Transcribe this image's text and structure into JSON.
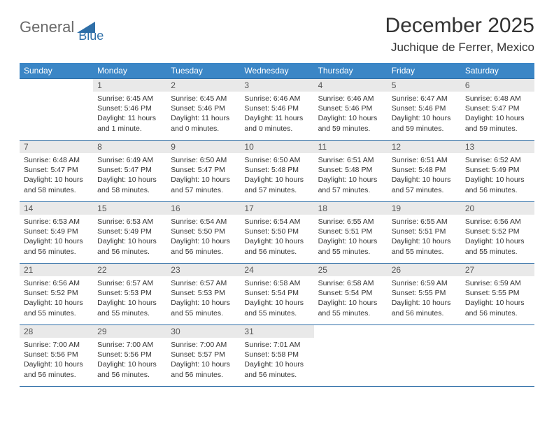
{
  "logo": {
    "text1": "General",
    "text2": "Blue"
  },
  "title": "December 2025",
  "location": "Juchique de Ferrer, Mexico",
  "weekday_header_bg": "#3b86c6",
  "weekday_header_fg": "#ffffff",
  "divider_color": "#2f6fa8",
  "daynum_bg": "#e9e9e9",
  "weekdays": [
    "Sunday",
    "Monday",
    "Tuesday",
    "Wednesday",
    "Thursday",
    "Friday",
    "Saturday"
  ],
  "weeks": [
    [
      {
        "empty": true
      },
      {
        "num": "1",
        "sunrise": "Sunrise: 6:45 AM",
        "sunset": "Sunset: 5:46 PM",
        "daylight": "Daylight: 11 hours and 1 minute."
      },
      {
        "num": "2",
        "sunrise": "Sunrise: 6:45 AM",
        "sunset": "Sunset: 5:46 PM",
        "daylight": "Daylight: 11 hours and 0 minutes."
      },
      {
        "num": "3",
        "sunrise": "Sunrise: 6:46 AM",
        "sunset": "Sunset: 5:46 PM",
        "daylight": "Daylight: 11 hours and 0 minutes."
      },
      {
        "num": "4",
        "sunrise": "Sunrise: 6:46 AM",
        "sunset": "Sunset: 5:46 PM",
        "daylight": "Daylight: 10 hours and 59 minutes."
      },
      {
        "num": "5",
        "sunrise": "Sunrise: 6:47 AM",
        "sunset": "Sunset: 5:46 PM",
        "daylight": "Daylight: 10 hours and 59 minutes."
      },
      {
        "num": "6",
        "sunrise": "Sunrise: 6:48 AM",
        "sunset": "Sunset: 5:47 PM",
        "daylight": "Daylight: 10 hours and 59 minutes."
      }
    ],
    [
      {
        "num": "7",
        "sunrise": "Sunrise: 6:48 AM",
        "sunset": "Sunset: 5:47 PM",
        "daylight": "Daylight: 10 hours and 58 minutes."
      },
      {
        "num": "8",
        "sunrise": "Sunrise: 6:49 AM",
        "sunset": "Sunset: 5:47 PM",
        "daylight": "Daylight: 10 hours and 58 minutes."
      },
      {
        "num": "9",
        "sunrise": "Sunrise: 6:50 AM",
        "sunset": "Sunset: 5:47 PM",
        "daylight": "Daylight: 10 hours and 57 minutes."
      },
      {
        "num": "10",
        "sunrise": "Sunrise: 6:50 AM",
        "sunset": "Sunset: 5:48 PM",
        "daylight": "Daylight: 10 hours and 57 minutes."
      },
      {
        "num": "11",
        "sunrise": "Sunrise: 6:51 AM",
        "sunset": "Sunset: 5:48 PM",
        "daylight": "Daylight: 10 hours and 57 minutes."
      },
      {
        "num": "12",
        "sunrise": "Sunrise: 6:51 AM",
        "sunset": "Sunset: 5:48 PM",
        "daylight": "Daylight: 10 hours and 57 minutes."
      },
      {
        "num": "13",
        "sunrise": "Sunrise: 6:52 AM",
        "sunset": "Sunset: 5:49 PM",
        "daylight": "Daylight: 10 hours and 56 minutes."
      }
    ],
    [
      {
        "num": "14",
        "sunrise": "Sunrise: 6:53 AM",
        "sunset": "Sunset: 5:49 PM",
        "daylight": "Daylight: 10 hours and 56 minutes."
      },
      {
        "num": "15",
        "sunrise": "Sunrise: 6:53 AM",
        "sunset": "Sunset: 5:49 PM",
        "daylight": "Daylight: 10 hours and 56 minutes."
      },
      {
        "num": "16",
        "sunrise": "Sunrise: 6:54 AM",
        "sunset": "Sunset: 5:50 PM",
        "daylight": "Daylight: 10 hours and 56 minutes."
      },
      {
        "num": "17",
        "sunrise": "Sunrise: 6:54 AM",
        "sunset": "Sunset: 5:50 PM",
        "daylight": "Daylight: 10 hours and 56 minutes."
      },
      {
        "num": "18",
        "sunrise": "Sunrise: 6:55 AM",
        "sunset": "Sunset: 5:51 PM",
        "daylight": "Daylight: 10 hours and 55 minutes."
      },
      {
        "num": "19",
        "sunrise": "Sunrise: 6:55 AM",
        "sunset": "Sunset: 5:51 PM",
        "daylight": "Daylight: 10 hours and 55 minutes."
      },
      {
        "num": "20",
        "sunrise": "Sunrise: 6:56 AM",
        "sunset": "Sunset: 5:52 PM",
        "daylight": "Daylight: 10 hours and 55 minutes."
      }
    ],
    [
      {
        "num": "21",
        "sunrise": "Sunrise: 6:56 AM",
        "sunset": "Sunset: 5:52 PM",
        "daylight": "Daylight: 10 hours and 55 minutes."
      },
      {
        "num": "22",
        "sunrise": "Sunrise: 6:57 AM",
        "sunset": "Sunset: 5:53 PM",
        "daylight": "Daylight: 10 hours and 55 minutes."
      },
      {
        "num": "23",
        "sunrise": "Sunrise: 6:57 AM",
        "sunset": "Sunset: 5:53 PM",
        "daylight": "Daylight: 10 hours and 55 minutes."
      },
      {
        "num": "24",
        "sunrise": "Sunrise: 6:58 AM",
        "sunset": "Sunset: 5:54 PM",
        "daylight": "Daylight: 10 hours and 55 minutes."
      },
      {
        "num": "25",
        "sunrise": "Sunrise: 6:58 AM",
        "sunset": "Sunset: 5:54 PM",
        "daylight": "Daylight: 10 hours and 55 minutes."
      },
      {
        "num": "26",
        "sunrise": "Sunrise: 6:59 AM",
        "sunset": "Sunset: 5:55 PM",
        "daylight": "Daylight: 10 hours and 56 minutes."
      },
      {
        "num": "27",
        "sunrise": "Sunrise: 6:59 AM",
        "sunset": "Sunset: 5:55 PM",
        "daylight": "Daylight: 10 hours and 56 minutes."
      }
    ],
    [
      {
        "num": "28",
        "sunrise": "Sunrise: 7:00 AM",
        "sunset": "Sunset: 5:56 PM",
        "daylight": "Daylight: 10 hours and 56 minutes."
      },
      {
        "num": "29",
        "sunrise": "Sunrise: 7:00 AM",
        "sunset": "Sunset: 5:56 PM",
        "daylight": "Daylight: 10 hours and 56 minutes."
      },
      {
        "num": "30",
        "sunrise": "Sunrise: 7:00 AM",
        "sunset": "Sunset: 5:57 PM",
        "daylight": "Daylight: 10 hours and 56 minutes."
      },
      {
        "num": "31",
        "sunrise": "Sunrise: 7:01 AM",
        "sunset": "Sunset: 5:58 PM",
        "daylight": "Daylight: 10 hours and 56 minutes."
      },
      {
        "empty": true
      },
      {
        "empty": true
      },
      {
        "empty": true
      }
    ]
  ]
}
